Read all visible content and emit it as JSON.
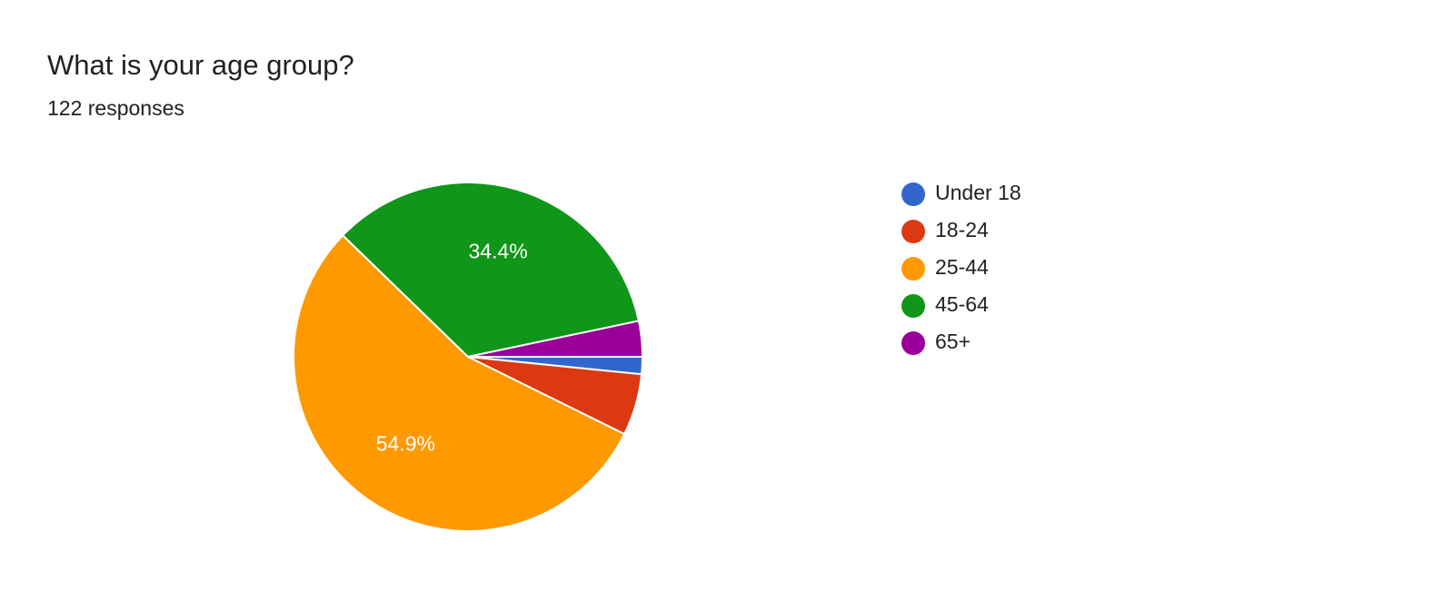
{
  "chart_data": {
    "type": "pie",
    "title": "What is your age group?",
    "subtitle": "122 responses",
    "categories": [
      "Under 18",
      "18-24",
      "25-44",
      "45-64",
      "65+"
    ],
    "values": [
      1.6,
      5.7,
      54.9,
      34.4,
      3.3
    ],
    "value_labels": [
      null,
      null,
      "54.9%",
      "34.4%",
      null
    ],
    "colors": [
      "#3366cc",
      "#dc3912",
      "#ff9900",
      "#109618",
      "#990099"
    ],
    "legend": "right"
  }
}
